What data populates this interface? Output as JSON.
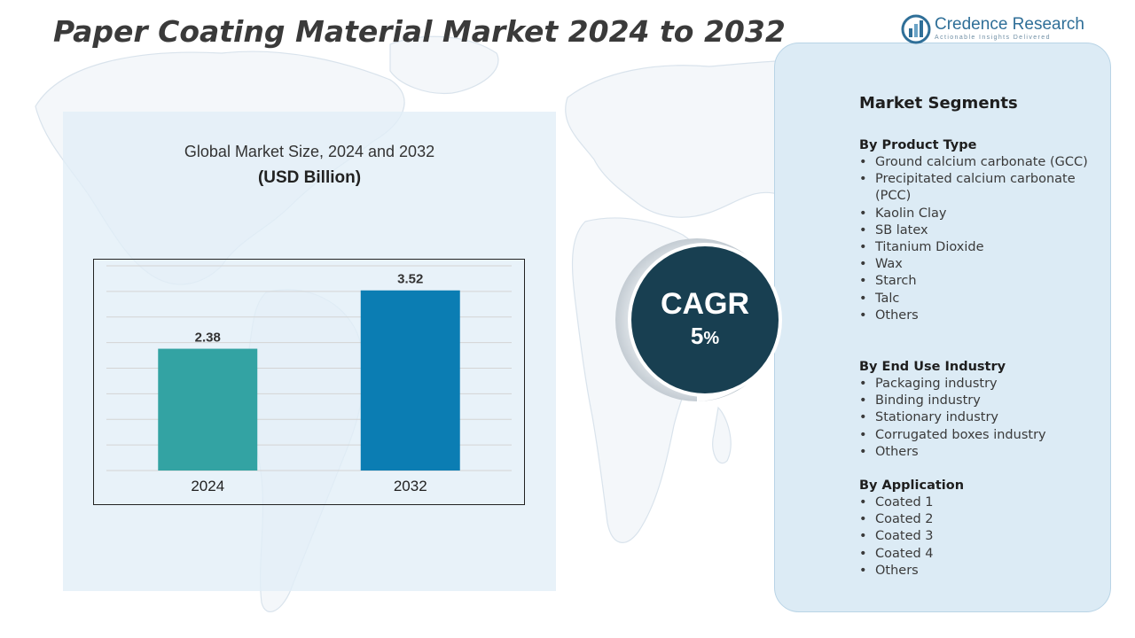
{
  "title": "Paper Coating Material   Market 2024 to 2032",
  "logo": {
    "name": "Credence Research",
    "tagline": "Actionable Insights Delivered"
  },
  "chart_data": {
    "type": "bar",
    "title": "Global Market Size, 2024 and 2032",
    "subtitle": "(USD Billion)",
    "categories": [
      "2024",
      "2032"
    ],
    "values": [
      2.38,
      3.52
    ],
    "colors": [
      "#33a3a3",
      "#0b7db3"
    ],
    "ylim": [
      0,
      4
    ],
    "grid": true,
    "xlabel": "",
    "ylabel": ""
  },
  "cagr": {
    "label": "CAGR",
    "value": "5",
    "unit": "%"
  },
  "segments": {
    "heading": "Market Segments",
    "groups": [
      {
        "title": "By Product Type",
        "items": [
          "Ground calcium carbonate (GCC)",
          "Precipitated calcium carbonate (PCC)",
          "Kaolin Clay",
          "SB latex",
          "Titanium Dioxide",
          "Wax",
          "Starch",
          "Talc",
          "Others"
        ]
      },
      {
        "title": "By End Use Industry",
        "items": [
          "Packaging industry",
          "Binding industry",
          "Stationary industry",
          "Corrugated boxes industry",
          "Others"
        ]
      },
      {
        "title": "By Application",
        "items": [
          "Coated 1",
          "Coated 2",
          "Coated 3",
          "Coated 4",
          "Others"
        ]
      }
    ]
  }
}
